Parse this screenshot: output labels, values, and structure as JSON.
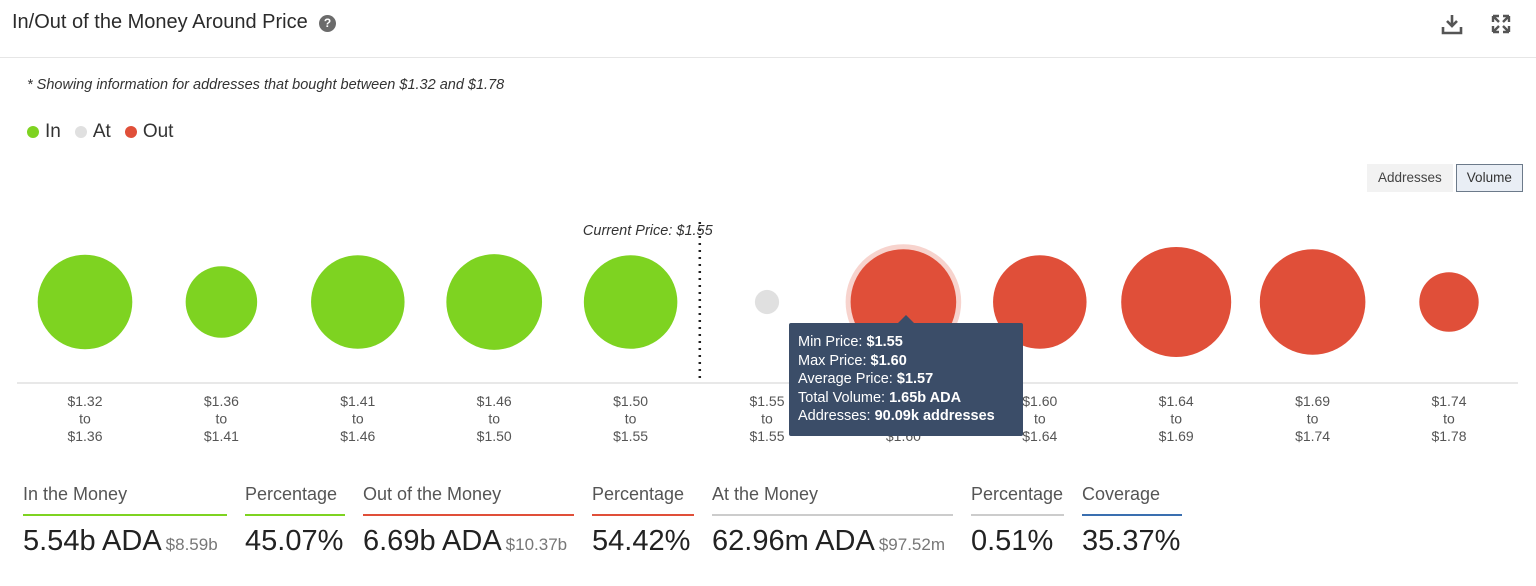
{
  "header": {
    "title": "In/Out of the Money Around Price",
    "help_icon": "question-circle-icon",
    "download_icon": "download-icon",
    "expand_icon": "expand-icon"
  },
  "note": "* Showing information for addresses that bought between $1.32 and $1.78",
  "legend": [
    {
      "label": "In",
      "color": "#7ed321"
    },
    {
      "label": "At",
      "color": "#e0e0e0"
    },
    {
      "label": "Out",
      "color": "#e04f39"
    }
  ],
  "toggle": {
    "addresses_label": "Addresses",
    "volume_label": "Volume",
    "selected": "Volume"
  },
  "chart_data": {
    "type": "scatter",
    "current_price_label": "Current Price: $1.55",
    "current_price_after_bucket": 5,
    "buckets": [
      {
        "from": "$1.32",
        "to": "$1.36",
        "status": "in",
        "relative_size": 0.86
      },
      {
        "from": "$1.36",
        "to": "$1.41",
        "status": "in",
        "relative_size": 0.65
      },
      {
        "from": "$1.41",
        "to": "$1.46",
        "status": "in",
        "relative_size": 0.85
      },
      {
        "from": "$1.46",
        "to": "$1.50",
        "status": "in",
        "relative_size": 0.87
      },
      {
        "from": "$1.50",
        "to": "$1.55",
        "status": "in",
        "relative_size": 0.85
      },
      {
        "from": "$1.55",
        "to": "$1.55",
        "status": "at",
        "relative_size": 0.22
      },
      {
        "from": "$1.55",
        "to": "$1.60",
        "status": "out",
        "relative_size": 0.96,
        "highlighted": true
      },
      {
        "from": "$1.60",
        "to": "$1.64",
        "status": "out",
        "relative_size": 0.85
      },
      {
        "from": "$1.64",
        "to": "$1.69",
        "status": "out",
        "relative_size": 1.0
      },
      {
        "from": "$1.69",
        "to": "$1.74",
        "status": "out",
        "relative_size": 0.96
      },
      {
        "from": "$1.74",
        "to": "$1.78",
        "status": "out",
        "relative_size": 0.54
      }
    ],
    "range_word": "to",
    "colors": {
      "in": "#7ed321",
      "at": "#e0e0e0",
      "out": "#e04f39"
    }
  },
  "tooltip": {
    "min_label": "Min Price: ",
    "min_value": "$1.55",
    "max_label": "Max Price: ",
    "max_value": "$1.60",
    "avg_label": "Average Price: ",
    "avg_value": "$1.57",
    "vol_label": "Total Volume: ",
    "vol_value": "1.65b ADA",
    "addr_label": "Addresses: ",
    "addr_value": "90.09k addresses"
  },
  "stats": {
    "in_label": "In the Money",
    "in_value": "5.54b ADA",
    "in_usd": "$8.59b",
    "in_pct_label": "Percentage",
    "in_pct": "45.07%",
    "out_label": "Out of the Money",
    "out_value": "6.69b ADA",
    "out_usd": "$10.37b",
    "out_pct_label": "Percentage",
    "out_pct": "54.42%",
    "at_label": "At the Money",
    "at_value": "62.96m ADA",
    "at_usd": "$97.52m",
    "at_pct_label": "Percentage",
    "at_pct": "0.51%",
    "coverage_label": "Coverage",
    "coverage": "35.37%",
    "colors": {
      "in": "#7ed321",
      "out": "#e04f39",
      "at": "#cccccc",
      "coverage": "#3a6fb0"
    }
  }
}
